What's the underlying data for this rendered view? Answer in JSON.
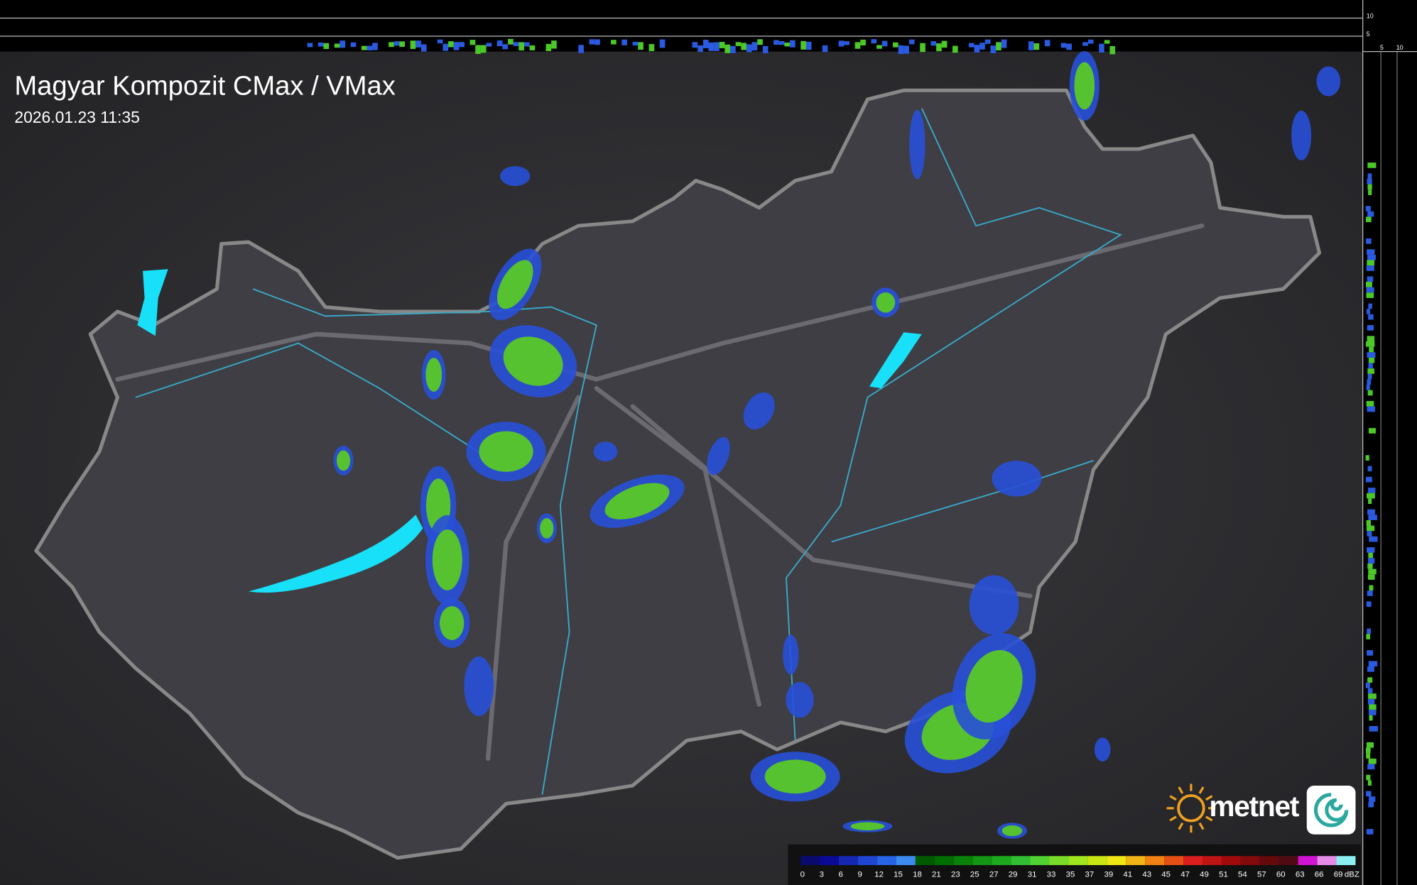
{
  "map": {
    "title": "Magyar Kompozit CMax / VMax",
    "timestamp": "2026.01.23 11:35",
    "logo": "metnet",
    "profile_labels": [
      "10",
      "5",
      "5",
      "10"
    ],
    "legend": {
      "unit": "dBZ",
      "ticks": [
        0,
        3,
        6,
        9,
        12,
        15,
        18,
        21,
        23,
        25,
        27,
        29,
        31,
        33,
        35,
        37,
        39,
        41,
        43,
        45,
        47,
        49,
        51,
        54,
        57,
        60,
        63,
        66,
        69
      ],
      "colors": [
        "#0a0a6e",
        "#0a0a96",
        "#1428b4",
        "#1e46d2",
        "#2864e6",
        "#3c8cf0",
        "#005a00",
        "#006e00",
        "#0a820a",
        "#149614",
        "#1eaa1e",
        "#32be32",
        "#50d232",
        "#78dc28",
        "#a0e61e",
        "#c8e614",
        "#f0e614",
        "#f0b414",
        "#f08214",
        "#e65014",
        "#dc1e1e",
        "#be1414",
        "#a00a0a",
        "#820a0a",
        "#640a0a",
        "#500a14",
        "#d214d2",
        "#e68ce6",
        "#8cf0f0"
      ]
    }
  }
}
